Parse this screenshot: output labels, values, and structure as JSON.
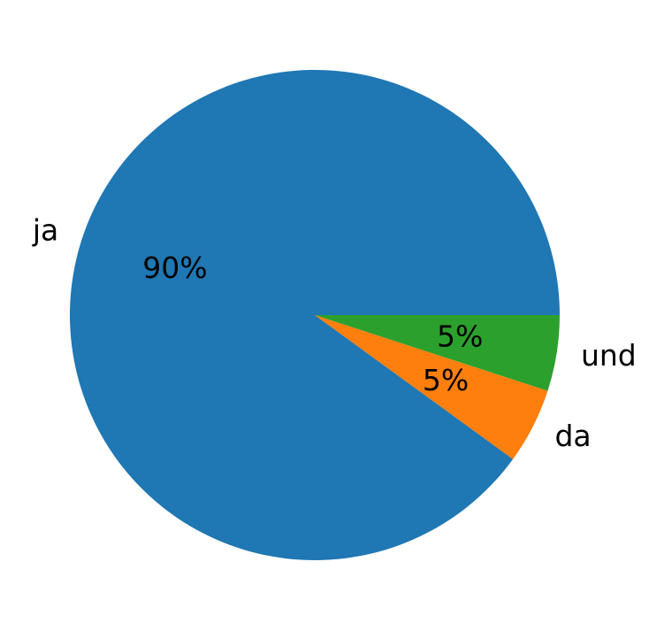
{
  "chart_data": {
    "type": "pie",
    "categories": [
      "ja",
      "da",
      "und"
    ],
    "values": [
      90,
      5,
      5
    ],
    "value_labels": [
      "90%",
      "5%",
      "5%"
    ],
    "colors": [
      "#1f77b4",
      "#ff7f0e",
      "#2ca02c"
    ]
  }
}
